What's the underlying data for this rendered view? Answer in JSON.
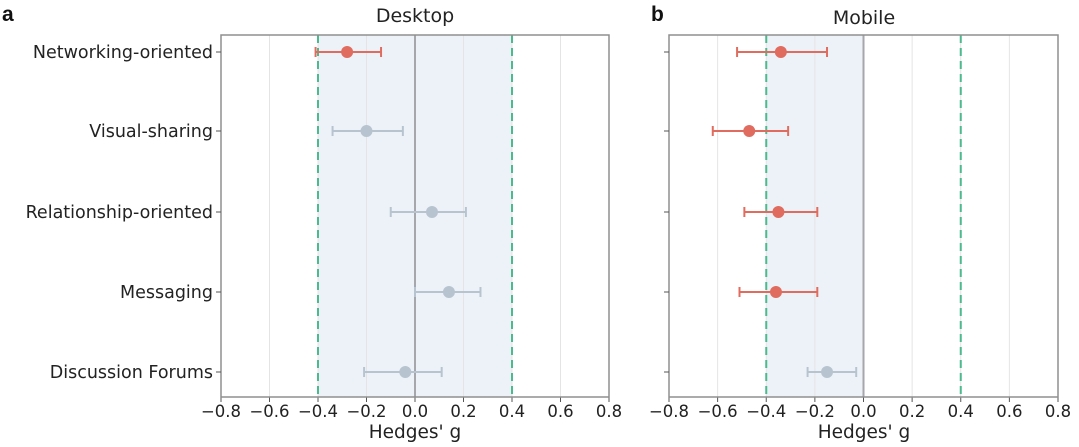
{
  "chart_data": [
    {
      "type": "scatter",
      "panel": "a",
      "title": "Desktop",
      "xlabel": "Hedges' g",
      "xlim": [
        -0.8,
        0.8
      ],
      "xticks": [
        "−0.8",
        "−0.6",
        "−0.4",
        "−0.2",
        "0.0",
        "0.2",
        "0.4",
        "0.6",
        "0.8"
      ],
      "categories": [
        "Networking-oriented",
        "Visual-sharing",
        "Relationship-oriented",
        "Messaging",
        "Discussion Forums"
      ],
      "points": [
        {
          "category": "Networking-oriented",
          "g": -0.28,
          "ci_low": -0.41,
          "ci_high": -0.14,
          "significant": true
        },
        {
          "category": "Visual-sharing",
          "g": -0.2,
          "ci_low": -0.34,
          "ci_high": -0.05,
          "significant": false
        },
        {
          "category": "Relationship-oriented",
          "g": 0.07,
          "ci_low": -0.1,
          "ci_high": 0.21,
          "significant": false
        },
        {
          "category": "Messaging",
          "g": 0.14,
          "ci_low": 0.0,
          "ci_high": 0.27,
          "significant": false
        },
        {
          "category": "Discussion Forums",
          "g": -0.04,
          "ci_low": -0.21,
          "ci_high": 0.11,
          "significant": false
        }
      ],
      "reference_lines": [
        -0.4,
        0.4
      ],
      "shaded_range": [
        -0.4,
        0.4
      ],
      "grid": true
    },
    {
      "type": "scatter",
      "panel": "b",
      "title": "Mobile",
      "xlabel": "Hedges' g",
      "xlim": [
        -0.8,
        0.8
      ],
      "xticks": [
        "−0.8",
        "−0.6",
        "−0.4",
        "−0.2",
        "0.0",
        "0.2",
        "0.4",
        "0.6",
        "0.8"
      ],
      "categories": [
        "Networking-oriented",
        "Visual-sharing",
        "Relationship-oriented",
        "Messaging",
        "Discussion Forums"
      ],
      "points": [
        {
          "category": "Networking-oriented",
          "g": -0.34,
          "ci_low": -0.52,
          "ci_high": -0.15,
          "significant": true
        },
        {
          "category": "Visual-sharing",
          "g": -0.47,
          "ci_low": -0.62,
          "ci_high": -0.31,
          "significant": true
        },
        {
          "category": "Relationship-oriented",
          "g": -0.35,
          "ci_low": -0.49,
          "ci_high": -0.19,
          "significant": true
        },
        {
          "category": "Messaging",
          "g": -0.36,
          "ci_low": -0.51,
          "ci_high": -0.19,
          "significant": true
        },
        {
          "category": "Discussion Forums",
          "g": -0.15,
          "ci_low": -0.23,
          "ci_high": -0.03,
          "significant": false
        }
      ],
      "reference_lines": [
        -0.4,
        0.4
      ],
      "shaded_range": [
        -0.4,
        0.0
      ],
      "grid": true
    }
  ],
  "colors": {
    "significant": "#e06c5f",
    "not_significant": "#b7c4cf",
    "reference_line": "#4cba8d",
    "zero_line": "#a6a6ad",
    "shade": "#edf2f8",
    "grid": "#e4e4e4",
    "frame": "#8f8f8f",
    "text": "#222222"
  }
}
